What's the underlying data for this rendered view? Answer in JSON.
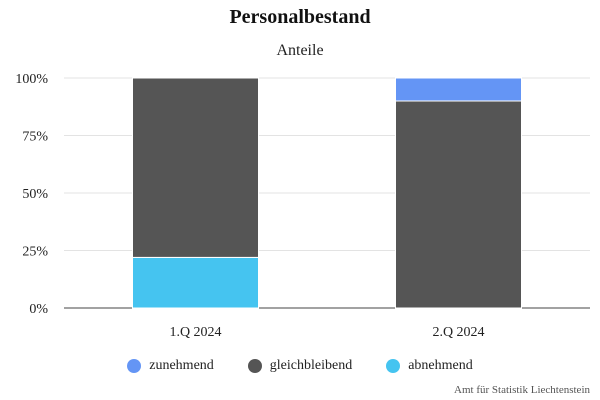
{
  "chart_data": {
    "type": "bar",
    "stacked": true,
    "title": "Personalbestand",
    "subtitle": "Anteile",
    "categories": [
      "1.Q 2024",
      "2.Q 2024"
    ],
    "series": [
      {
        "name": "zunehmend",
        "color": "#6495f5",
        "values": [
          0,
          10
        ]
      },
      {
        "name": "gleichbleibend",
        "color": "#555555",
        "values": [
          78,
          90
        ]
      },
      {
        "name": "abnehmend",
        "color": "#45c4f0",
        "values": [
          22,
          0
        ]
      }
    ],
    "stack_order_bottom_to_top": [
      "abnehmend",
      "gleichbleibend",
      "zunehmend"
    ],
    "ylim": [
      0,
      100
    ],
    "yticks": [
      0,
      25,
      50,
      75,
      100
    ],
    "ytick_labels": [
      "0%",
      "25%",
      "50%",
      "75%",
      "100%"
    ],
    "grid": true,
    "legend_position": "bottom"
  },
  "credit": "Amt für Statistik Liechtenstein"
}
